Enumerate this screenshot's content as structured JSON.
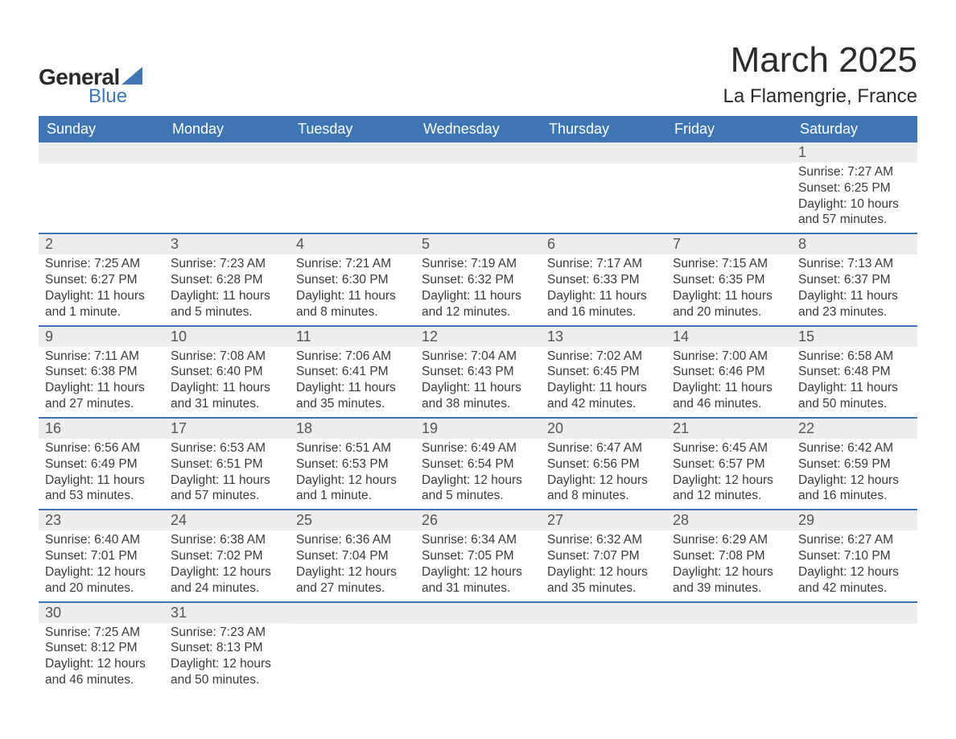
{
  "brand": {
    "general": "General",
    "blue": "Blue",
    "triangle_color": "#3e76b3"
  },
  "header": {
    "month_title": "March 2025",
    "location": "La Flamengrie, France"
  },
  "colors": {
    "header_bg": "#3e76b3",
    "header_text": "#ffffff",
    "strip_bg": "#ededed",
    "body_text": "#3a3a3a",
    "page_bg": "#ffffff",
    "divider": "#3e76b3"
  },
  "typography": {
    "month_title_fontsize": 44,
    "location_fontsize": 24,
    "dow_fontsize": 18,
    "daynum_fontsize": 18,
    "body_fontsize": 15.5,
    "font_family": "Arial"
  },
  "days_of_week": [
    "Sunday",
    "Monday",
    "Tuesday",
    "Wednesday",
    "Thursday",
    "Friday",
    "Saturday"
  ],
  "labels": {
    "sunrise": "Sunrise:",
    "sunset": "Sunset:",
    "daylight": "Daylight:"
  },
  "weeks": [
    [
      null,
      null,
      null,
      null,
      null,
      null,
      {
        "n": "1",
        "sunrise": "7:27 AM",
        "sunset": "6:25 PM",
        "daylight": "10 hours and 57 minutes."
      }
    ],
    [
      {
        "n": "2",
        "sunrise": "7:25 AM",
        "sunset": "6:27 PM",
        "daylight": "11 hours and 1 minute."
      },
      {
        "n": "3",
        "sunrise": "7:23 AM",
        "sunset": "6:28 PM",
        "daylight": "11 hours and 5 minutes."
      },
      {
        "n": "4",
        "sunrise": "7:21 AM",
        "sunset": "6:30 PM",
        "daylight": "11 hours and 8 minutes."
      },
      {
        "n": "5",
        "sunrise": "7:19 AM",
        "sunset": "6:32 PM",
        "daylight": "11 hours and 12 minutes."
      },
      {
        "n": "6",
        "sunrise": "7:17 AM",
        "sunset": "6:33 PM",
        "daylight": "11 hours and 16 minutes."
      },
      {
        "n": "7",
        "sunrise": "7:15 AM",
        "sunset": "6:35 PM",
        "daylight": "11 hours and 20 minutes."
      },
      {
        "n": "8",
        "sunrise": "7:13 AM",
        "sunset": "6:37 PM",
        "daylight": "11 hours and 23 minutes."
      }
    ],
    [
      {
        "n": "9",
        "sunrise": "7:11 AM",
        "sunset": "6:38 PM",
        "daylight": "11 hours and 27 minutes."
      },
      {
        "n": "10",
        "sunrise": "7:08 AM",
        "sunset": "6:40 PM",
        "daylight": "11 hours and 31 minutes."
      },
      {
        "n": "11",
        "sunrise": "7:06 AM",
        "sunset": "6:41 PM",
        "daylight": "11 hours and 35 minutes."
      },
      {
        "n": "12",
        "sunrise": "7:04 AM",
        "sunset": "6:43 PM",
        "daylight": "11 hours and 38 minutes."
      },
      {
        "n": "13",
        "sunrise": "7:02 AM",
        "sunset": "6:45 PM",
        "daylight": "11 hours and 42 minutes."
      },
      {
        "n": "14",
        "sunrise": "7:00 AM",
        "sunset": "6:46 PM",
        "daylight": "11 hours and 46 minutes."
      },
      {
        "n": "15",
        "sunrise": "6:58 AM",
        "sunset": "6:48 PM",
        "daylight": "11 hours and 50 minutes."
      }
    ],
    [
      {
        "n": "16",
        "sunrise": "6:56 AM",
        "sunset": "6:49 PM",
        "daylight": "11 hours and 53 minutes."
      },
      {
        "n": "17",
        "sunrise": "6:53 AM",
        "sunset": "6:51 PM",
        "daylight": "11 hours and 57 minutes."
      },
      {
        "n": "18",
        "sunrise": "6:51 AM",
        "sunset": "6:53 PM",
        "daylight": "12 hours and 1 minute."
      },
      {
        "n": "19",
        "sunrise": "6:49 AM",
        "sunset": "6:54 PM",
        "daylight": "12 hours and 5 minutes."
      },
      {
        "n": "20",
        "sunrise": "6:47 AM",
        "sunset": "6:56 PM",
        "daylight": "12 hours and 8 minutes."
      },
      {
        "n": "21",
        "sunrise": "6:45 AM",
        "sunset": "6:57 PM",
        "daylight": "12 hours and 12 minutes."
      },
      {
        "n": "22",
        "sunrise": "6:42 AM",
        "sunset": "6:59 PM",
        "daylight": "12 hours and 16 minutes."
      }
    ],
    [
      {
        "n": "23",
        "sunrise": "6:40 AM",
        "sunset": "7:01 PM",
        "daylight": "12 hours and 20 minutes."
      },
      {
        "n": "24",
        "sunrise": "6:38 AM",
        "sunset": "7:02 PM",
        "daylight": "12 hours and 24 minutes."
      },
      {
        "n": "25",
        "sunrise": "6:36 AM",
        "sunset": "7:04 PM",
        "daylight": "12 hours and 27 minutes."
      },
      {
        "n": "26",
        "sunrise": "6:34 AM",
        "sunset": "7:05 PM",
        "daylight": "12 hours and 31 minutes."
      },
      {
        "n": "27",
        "sunrise": "6:32 AM",
        "sunset": "7:07 PM",
        "daylight": "12 hours and 35 minutes."
      },
      {
        "n": "28",
        "sunrise": "6:29 AM",
        "sunset": "7:08 PM",
        "daylight": "12 hours and 39 minutes."
      },
      {
        "n": "29",
        "sunrise": "6:27 AM",
        "sunset": "7:10 PM",
        "daylight": "12 hours and 42 minutes."
      }
    ],
    [
      {
        "n": "30",
        "sunrise": "7:25 AM",
        "sunset": "8:12 PM",
        "daylight": "12 hours and 46 minutes."
      },
      {
        "n": "31",
        "sunrise": "7:23 AM",
        "sunset": "8:13 PM",
        "daylight": "12 hours and 50 minutes."
      },
      null,
      null,
      null,
      null,
      null
    ]
  ]
}
